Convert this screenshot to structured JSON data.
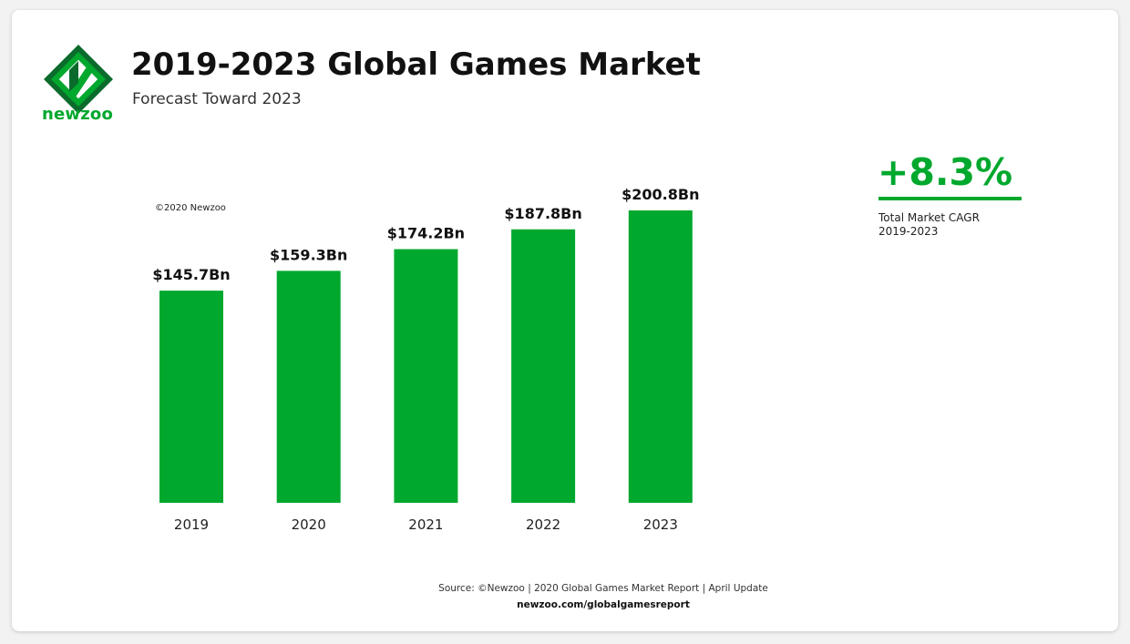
{
  "header": {
    "brand": "newzoo",
    "title": "2019-2023 Global Games Market",
    "subtitle": "Forecast Toward 2023"
  },
  "copyright": "©2020 Newzoo",
  "cagr": {
    "value": "+8.3%",
    "label_line1": "Total Market CAGR",
    "label_line2": "2019-2023"
  },
  "footer": {
    "source": "Source: ©Newzoo | 2020 Global Games Market Report | April Update",
    "url": "newzoo.com/globalgamesreport"
  },
  "colors": {
    "accent": "#00a82d",
    "logo_dark": "#0a6b2c",
    "text": "#111111"
  },
  "chart_data": {
    "type": "bar",
    "categories": [
      "2019",
      "2020",
      "2021",
      "2022",
      "2023"
    ],
    "values": [
      145.7,
      159.3,
      174.2,
      187.8,
      200.8
    ],
    "value_labels": [
      "$145.7Bn",
      "$159.3Bn",
      "$174.2Bn",
      "$187.8Bn",
      "$200.8Bn"
    ],
    "unit": "Bn",
    "ylim": [
      0,
      200.8
    ],
    "grid": false,
    "xlabel": "",
    "ylabel": ""
  }
}
